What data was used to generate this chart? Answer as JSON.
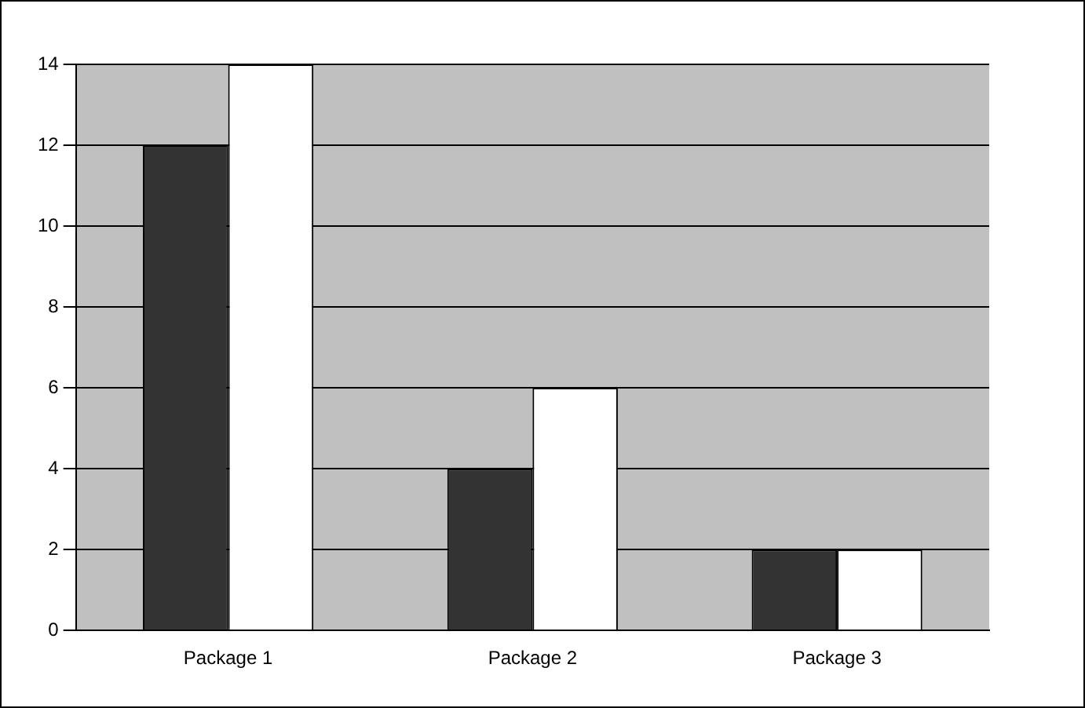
{
  "chart_data": {
    "type": "bar",
    "categories": [
      "Package 1",
      "Package 2",
      "Package 3"
    ],
    "series": [
      {
        "color": "#333333",
        "values": [
          12,
          4,
          2
        ]
      },
      {
        "color": "#ffffff",
        "values": [
          14,
          6,
          2
        ]
      }
    ],
    "ylim": [
      0,
      14
    ],
    "yticks": [
      0,
      2,
      4,
      6,
      8,
      10,
      12,
      14
    ],
    "grid": "y",
    "legend": false
  }
}
